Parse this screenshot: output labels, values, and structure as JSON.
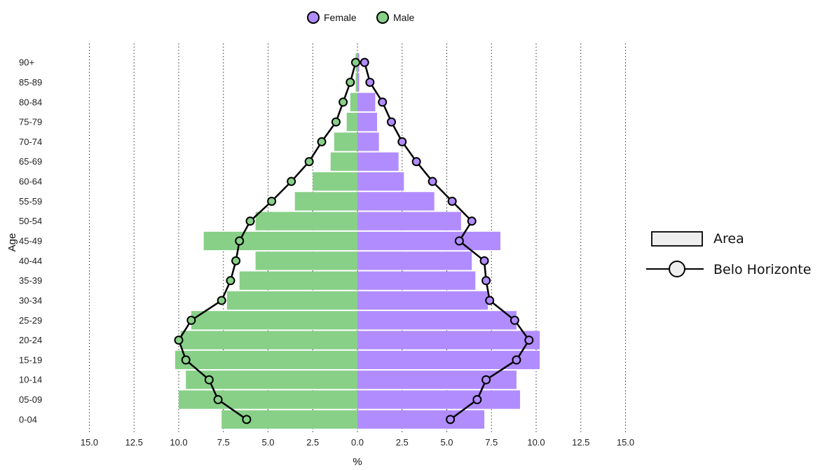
{
  "chart_data": {
    "type": "bar",
    "subtype": "population-pyramid",
    "orientation": "horizontal",
    "ylabel": "Age",
    "xlabel": "%",
    "xlim": [
      -15,
      15
    ],
    "x_ticks": [
      -15,
      -12.5,
      -10,
      -7.5,
      -5,
      -2.5,
      0,
      2.5,
      5,
      7.5,
      10,
      12.5,
      15
    ],
    "x_tick_labels": [
      "15.0",
      "12.5",
      "10.0",
      "7.5",
      "5.0",
      "2.5",
      "0.0",
      "2.5",
      "5.0",
      "7.5",
      "10.0",
      "12.5",
      "15.0"
    ],
    "grid": "vertical dotted",
    "categories": [
      "0-04",
      "05-09",
      "10-14",
      "15-19",
      "20-24",
      "25-29",
      "30-34",
      "35-39",
      "40-44",
      "45-49",
      "50-54",
      "55-59",
      "60-64",
      "65-69",
      "70-74",
      "75-79",
      "80-84",
      "85-89",
      "90+"
    ],
    "bar_series": [
      {
        "name": "Female",
        "side": "right",
        "color": "#b18cff",
        "values": [
          7.1,
          9.1,
          8.9,
          10.2,
          10.2,
          8.9,
          7.3,
          6.6,
          6.4,
          8.0,
          5.8,
          4.3,
          2.6,
          2.3,
          1.2,
          1.1,
          1.0,
          0.1,
          0.1
        ]
      },
      {
        "name": "Male",
        "side": "left",
        "color": "#88d088",
        "values": [
          7.6,
          10.0,
          9.6,
          10.2,
          9.9,
          9.3,
          7.3,
          6.6,
          5.7,
          8.6,
          5.7,
          3.5,
          2.5,
          1.5,
          1.3,
          0.6,
          0.4,
          0.1,
          0.1
        ]
      }
    ],
    "line_series": [
      {
        "name": "Belo Horizonte",
        "side": "right",
        "marker_color": "#b18cff",
        "values": [
          5.2,
          6.7,
          7.2,
          8.9,
          9.6,
          8.8,
          7.4,
          7.2,
          7.1,
          5.7,
          6.4,
          5.3,
          4.2,
          3.3,
          2.5,
          1.9,
          1.4,
          0.7,
          0.4
        ]
      },
      {
        "name": "Belo Horizonte",
        "side": "left",
        "marker_color": "#88d088",
        "values": [
          6.2,
          7.8,
          8.3,
          9.6,
          10.0,
          9.3,
          7.6,
          7.1,
          6.8,
          6.6,
          6.0,
          4.8,
          3.7,
          2.7,
          2.0,
          1.2,
          0.8,
          0.4,
          0.1
        ]
      }
    ],
    "legend_top": [
      {
        "label": "Female",
        "color": "#b18cff"
      },
      {
        "label": "Male",
        "color": "#88d088"
      }
    ],
    "legend_right": [
      {
        "label": "Area",
        "symbol": "box",
        "color": "#eeeeee"
      },
      {
        "label": "Belo Horizonte",
        "symbol": "line-circle",
        "color": "#eeeeee"
      }
    ],
    "legend_top_placement": "top-center",
    "legend_right_placement": "right"
  }
}
